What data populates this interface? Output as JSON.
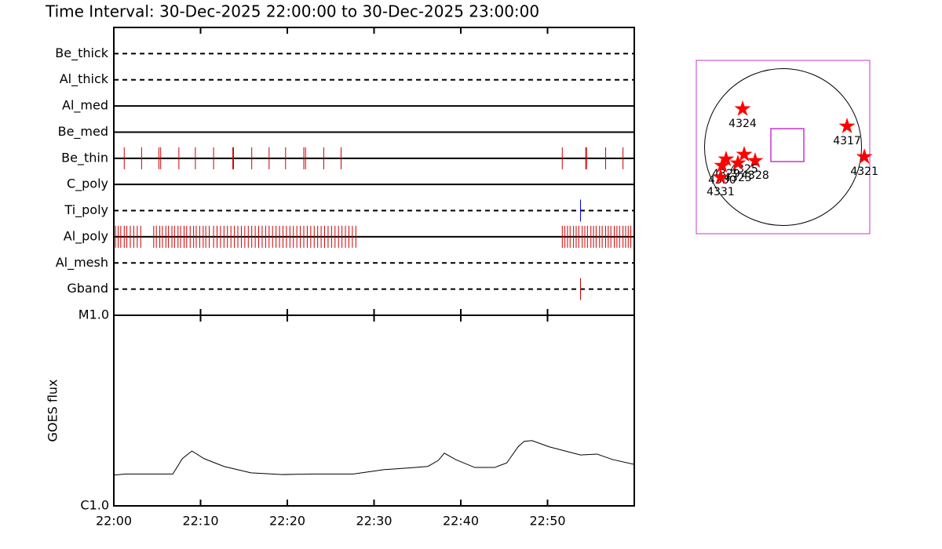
{
  "chart_data": [
    {
      "type": "event-timeline",
      "title": "Time Interval: 30-Dec-2025 22:00:00 to 30-Dec-2025 23:00:00",
      "xlim": [
        0,
        60
      ],
      "rows": [
        {
          "name": "Be_thick",
          "style": "dashed",
          "color": "#cc0000",
          "x": []
        },
        {
          "name": "Al_thick",
          "style": "dashed",
          "color": "#cc0000",
          "x": []
        },
        {
          "name": "Al_med",
          "style": "solid",
          "color": "#cc0000",
          "x": []
        },
        {
          "name": "Be_med",
          "style": "solid",
          "color": "#cc0000",
          "x": []
        },
        {
          "name": "Be_thin",
          "style": "solid",
          "color": "#cc0000",
          "x": [
            1.2,
            3.2,
            5.2,
            5.4,
            7.5,
            9.4,
            11.5,
            13.7,
            13.8,
            15.9,
            17.9,
            19.8,
            21.9,
            22.1,
            24.2,
            26.2,
            51.7,
            54.4,
            54.5,
            56.7,
            58.7
          ]
        },
        {
          "name": "C_poly",
          "style": "solid",
          "color": "#cc0000",
          "x": []
        },
        {
          "name": "Ti_poly",
          "style": "dashed",
          "color": "#0000ff",
          "x": [
            53.8
          ]
        },
        {
          "name": "Al_poly",
          "style": "solid",
          "color": "#cc0000",
          "x": [
            0.2,
            0.5,
            0.8,
            1.2,
            1.5,
            1.9,
            2.3,
            2.7,
            3.1,
            4.6,
            4.9,
            5.3,
            5.6,
            6.0,
            6.3,
            6.7,
            7.0,
            7.4,
            7.7,
            8.1,
            8.4,
            8.8,
            9.2,
            9.5,
            9.9,
            10.3,
            10.6,
            11.0,
            11.5,
            11.9,
            12.3,
            12.7,
            13.1,
            13.5,
            13.9,
            14.3,
            14.7,
            15.1,
            15.5,
            15.9,
            16.3,
            16.7,
            17.1,
            17.5,
            17.9,
            18.3,
            18.7,
            19.1,
            19.5,
            19.9,
            20.3,
            20.7,
            21.1,
            21.5,
            21.9,
            22.3,
            22.7,
            23.1,
            23.5,
            23.9,
            24.3,
            24.7,
            25.1,
            25.5,
            25.9,
            26.3,
            26.7,
            27.1,
            27.5,
            27.9,
            51.7,
            52.0,
            52.3,
            52.6,
            53.0,
            53.3,
            53.6,
            54.0,
            54.3,
            54.6,
            55.0,
            55.3,
            55.6,
            56.0,
            56.3,
            56.7,
            57.0,
            57.3,
            57.7,
            58.0,
            58.3,
            58.7,
            59.0,
            59.3,
            59.6
          ]
        },
        {
          "name": "Al_mesh",
          "style": "dashed",
          "color": "#cc0000",
          "x": []
        },
        {
          "name": "Gband",
          "style": "dashed",
          "color": "#cc0000",
          "x": [
            53.8
          ]
        }
      ]
    },
    {
      "type": "line",
      "ylabel": "GOES flux",
      "log": true,
      "color": "#000000",
      "xlim": [
        0,
        60
      ],
      "xticks": [
        {
          "value": 0,
          "label": "22:00"
        },
        {
          "value": 10,
          "label": "22:10"
        },
        {
          "value": 20,
          "label": "22:20"
        },
        {
          "value": 30,
          "label": "22:30"
        },
        {
          "value": 40,
          "label": "22:40"
        },
        {
          "value": 50,
          "label": "22:50"
        }
      ],
      "ylim": [
        1e-06,
        1e-05
      ],
      "yticks": [
        {
          "value": 1e-06,
          "label": "C1.0"
        },
        {
          "value": 1e-05,
          "label": "M1.0"
        }
      ],
      "x": [
        0,
        1.4,
        6.8,
        7.9,
        9.0,
        10.4,
        12.7,
        15.8,
        19.5,
        23.1,
        27.6,
        31.2,
        33.9,
        36.2,
        37.4,
        38.1,
        39.4,
        41.6,
        43.9,
        45.3,
        46.6,
        47.3,
        48.2,
        50.2,
        53.8,
        55.7,
        57.5,
        60
      ],
      "values": [
        1.45e-06,
        1.47e-06,
        1.47e-06,
        1.77e-06,
        1.94e-06,
        1.77e-06,
        1.61e-06,
        1.49e-06,
        1.46e-06,
        1.47e-06,
        1.47e-06,
        1.55e-06,
        1.58e-06,
        1.61e-06,
        1.73e-06,
        1.89e-06,
        1.75e-06,
        1.59e-06,
        1.59e-06,
        1.68e-06,
        2.04e-06,
        2.18e-06,
        2.2e-06,
        2.04e-06,
        1.85e-06,
        1.87e-06,
        1.75e-06,
        1.65e-06
      ]
    },
    {
      "type": "map",
      "color": "#ff0000",
      "xlim": [
        -1060,
        1060
      ],
      "ylim": [
        -1060,
        1060
      ],
      "points": [
        {
          "label": "4324",
          "x": -494,
          "y": 466
        },
        {
          "label": "4317",
          "x": 782,
          "y": 254
        },
        {
          "label": "4321",
          "x": 994,
          "y": -120
        },
        {
          "label": "4328",
          "x": -341,
          "y": -168
        },
        {
          "label": "4325",
          "x": -475,
          "y": -91
        },
        {
          "label": "4323",
          "x": -552,
          "y": -197
        },
        {
          "label": "4329",
          "x": -696,
          "y": -149
        },
        {
          "label": "4330",
          "x": -744,
          "y": -226
        },
        {
          "label": "4331",
          "x": -763,
          "y": -370
        }
      ]
    }
  ]
}
